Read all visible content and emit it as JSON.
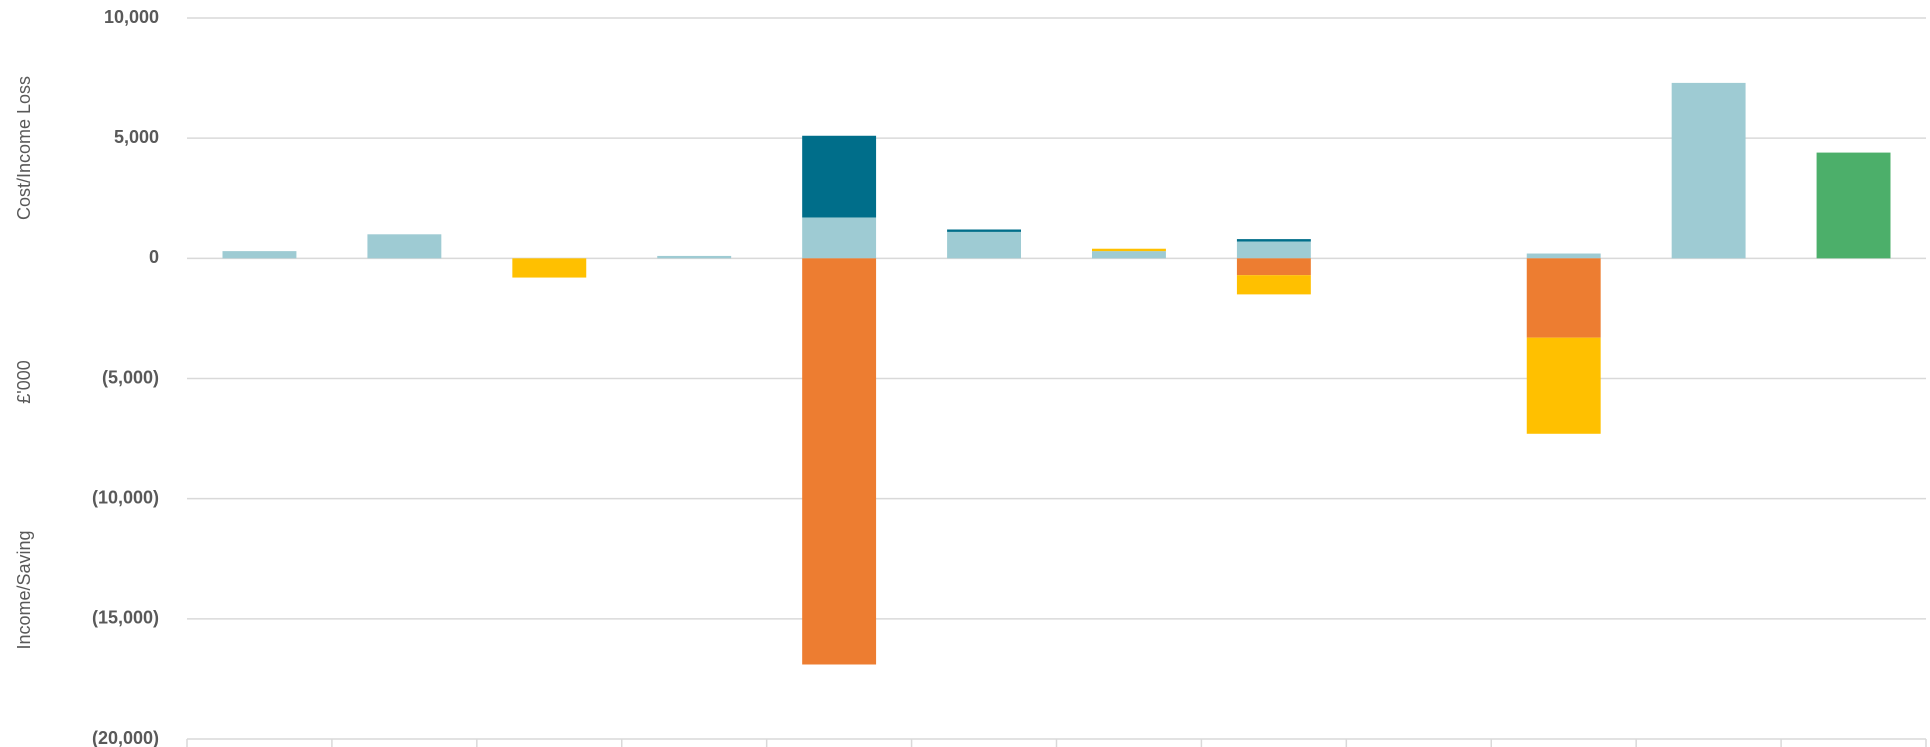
{
  "chart_data": {
    "type": "stacked-bar",
    "y_axis_labels": [
      "Cost/Income Loss",
      "£'000",
      "Income/Saving"
    ],
    "categories": [
      null,
      null,
      null,
      null,
      null,
      null,
      null,
      null,
      null,
      null,
      null,
      null
    ],
    "series": [
      {
        "color": "#9ecbd3",
        "values": [
          300,
          1000,
          null,
          100,
          1700,
          1100,
          300,
          700,
          null,
          200,
          7300,
          null
        ]
      },
      {
        "color": "#006e8a",
        "values": [
          null,
          null,
          null,
          null,
          3400,
          100,
          null,
          100,
          null,
          null,
          null,
          null
        ]
      },
      {
        "color": "#ed7d31",
        "values": [
          null,
          null,
          null,
          null,
          -16900,
          null,
          null,
          -700,
          null,
          -3300,
          null,
          null
        ]
      },
      {
        "color": "#ffc000",
        "values": [
          null,
          null,
          -800,
          null,
          null,
          null,
          100,
          -800,
          null,
          -4000,
          null,
          null
        ]
      },
      {
        "color": "#4caf6a",
        "values": [
          null,
          null,
          null,
          null,
          null,
          null,
          null,
          null,
          null,
          null,
          null,
          4400
        ]
      }
    ],
    "ylim": [
      -20000,
      10000
    ],
    "yticks": [
      {
        "value": -20000,
        "label": "(20,000)"
      },
      {
        "value": -15000,
        "label": "(15,000)"
      },
      {
        "value": -10000,
        "label": "(10,000)"
      },
      {
        "value": -5000,
        "label": "(5,000)"
      },
      0,
      {
        "value": 5000,
        "label": "5,000"
      },
      {
        "value": 10000,
        "label": "10,000"
      }
    ],
    "grid": true
  }
}
